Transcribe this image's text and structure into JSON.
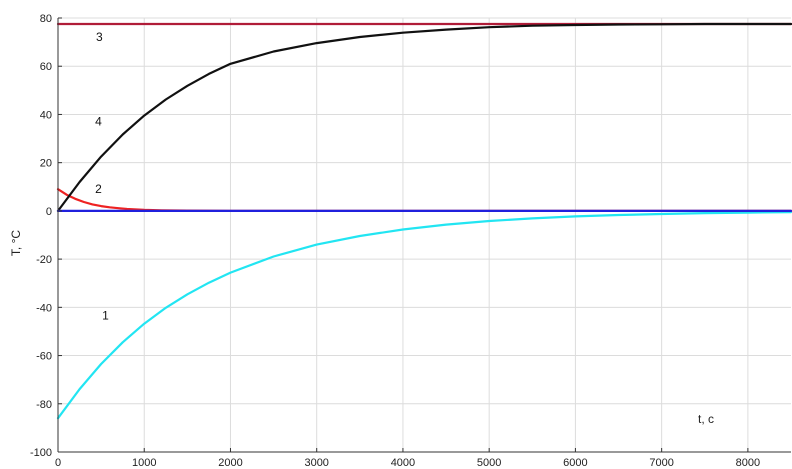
{
  "chart_data": {
    "type": "line",
    "xlabel": "t, c",
    "ylabel": "T, °C",
    "xlim": [
      0,
      8500
    ],
    "ylim": [
      -100,
      80
    ],
    "xticks": [
      0,
      1000,
      2000,
      3000,
      4000,
      5000,
      6000,
      7000,
      8000
    ],
    "yticks": [
      -100,
      -80,
      -60,
      -40,
      -20,
      0,
      20,
      40,
      60,
      80
    ],
    "grid": true,
    "series": [
      {
        "label": "1",
        "color": "#22e5f2",
        "x": [
          0,
          250,
          500,
          750,
          1000,
          1250,
          1500,
          1750,
          2000,
          2500,
          3000,
          3500,
          4000,
          4500,
          5000,
          5500,
          6000,
          6500,
          7000,
          7500,
          8000,
          8500
        ],
        "y": [
          -86,
          -73.9,
          -63.5,
          -54.5,
          -46.8,
          -40.2,
          -34.6,
          -29.8,
          -25.6,
          -18.9,
          -14.0,
          -10.4,
          -7.7,
          -5.7,
          -4.2,
          -3.1,
          -2.3,
          -1.7,
          -1.3,
          -0.9,
          -0.7,
          -0.5
        ]
      },
      {
        "label": "2",
        "color": "#ee2222",
        "x": [
          0,
          100,
          200,
          300,
          400,
          500,
          600,
          700,
          800,
          1000,
          1200,
          1500,
          2000,
          3000,
          5000,
          8500
        ],
        "y": [
          9,
          6.7,
          5.0,
          3.7,
          2.7,
          2.0,
          1.5,
          1.1,
          0.8,
          0.4,
          0.2,
          0.1,
          0,
          0,
          0,
          0
        ]
      },
      {
        "label": "3",
        "color": "#b01c38",
        "x": [
          0,
          8500
        ],
        "y": [
          77.5,
          77.5
        ]
      },
      {
        "label": "4",
        "color": "#111111",
        "x": [
          0,
          250,
          500,
          750,
          1000,
          1250,
          1500,
          1750,
          2000,
          2500,
          3000,
          3500,
          4000,
          4500,
          5000,
          5500,
          6000,
          6500,
          7000,
          7500,
          8000,
          8500
        ],
        "y": [
          0,
          12,
          22.5,
          31.7,
          39.5,
          46.2,
          51.9,
          56.8,
          61.0,
          66.1,
          69.6,
          72.1,
          73.9,
          75.2,
          76.2,
          76.8,
          77.1,
          77.3,
          77.4,
          77.5,
          77.5,
          77.5
        ]
      },
      {
        "label": "",
        "color": "#2020dd",
        "x": [
          0,
          8500
        ],
        "y": [
          0,
          0
        ]
      }
    ],
    "annotations": [
      {
        "text": "1",
        "x": 550,
        "y": -45
      },
      {
        "text": "2",
        "x": 470,
        "y": 7.5
      },
      {
        "text": "3",
        "x": 480,
        "y": 70.5
      },
      {
        "text": "4",
        "x": 470,
        "y": 35.5
      }
    ]
  }
}
